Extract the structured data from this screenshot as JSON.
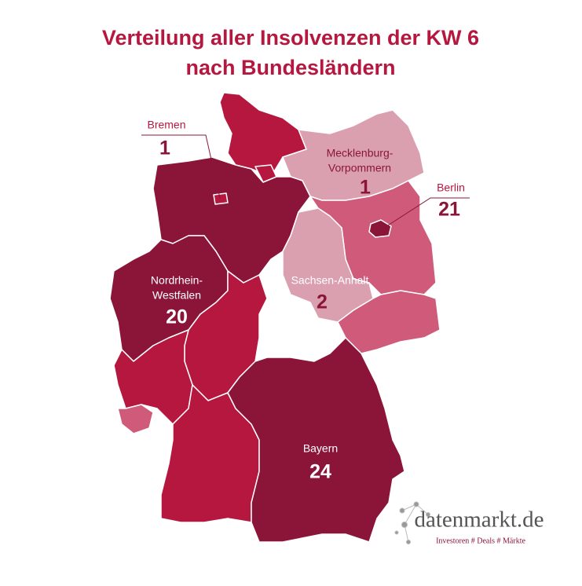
{
  "title": [
    "Verteilung aller Insolvenzen der KW 6",
    "nach Bundesländern"
  ],
  "regions": [
    {
      "name": [
        "Bremen"
      ],
      "value": 1
    },
    {
      "name": [
        "Mecklenburg-",
        "Vorpommern"
      ],
      "value": 1
    },
    {
      "name": [
        "Berlin"
      ],
      "value": 21
    },
    {
      "name": [
        "Nordrhein-",
        "Westfalen"
      ],
      "value": 20
    },
    {
      "name": [
        "Sachsen-Anhalt"
      ],
      "value": 2
    },
    {
      "name": [
        "Bayern"
      ],
      "value": 24
    }
  ],
  "logo": {
    "name": "datenmarkt.de",
    "tagline": "Investoren # Deals # Märkte"
  }
}
